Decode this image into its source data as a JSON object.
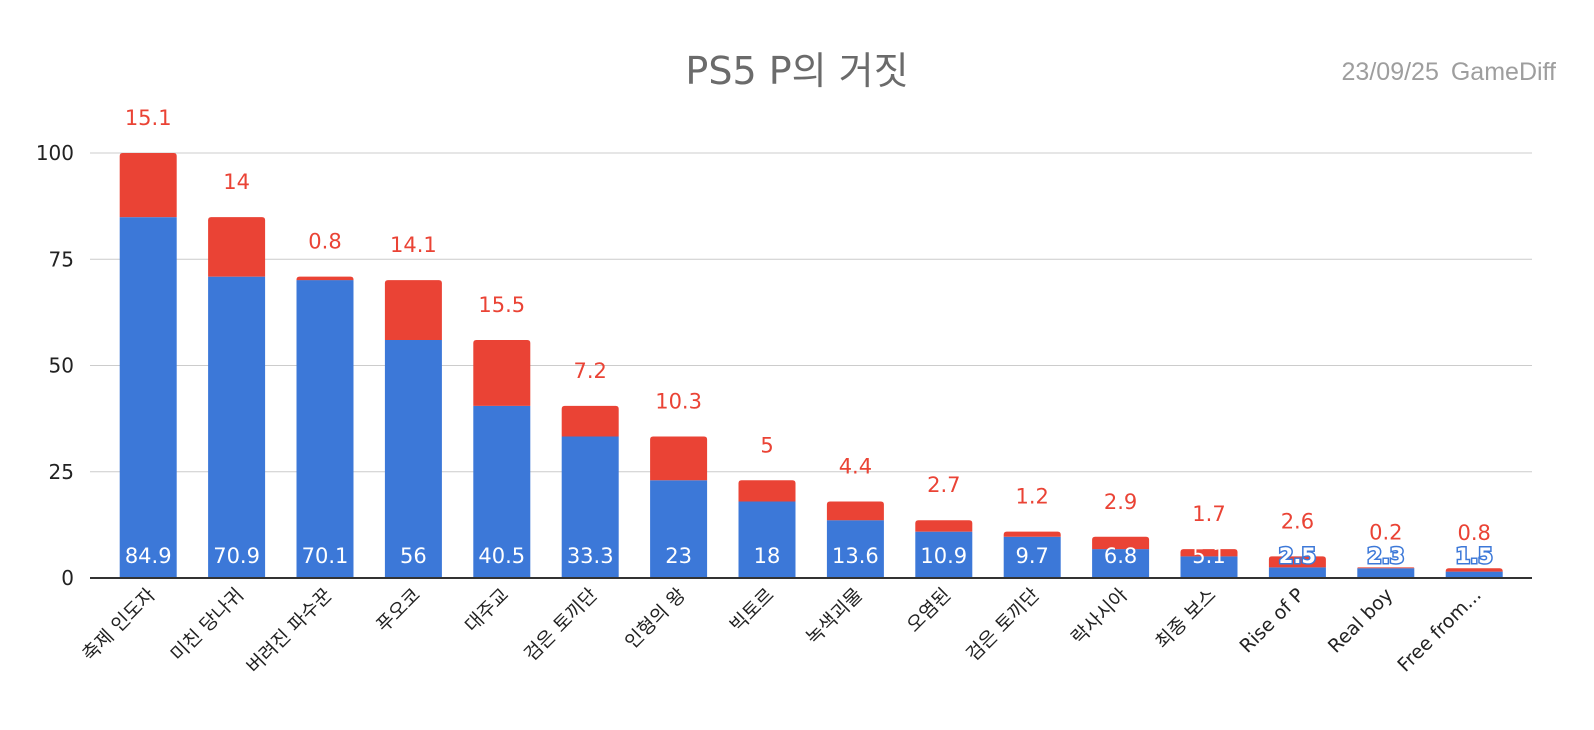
{
  "chart_data": {
    "type": "bar",
    "stacked": true,
    "title": "PS5 P의 거짓",
    "date": "23/09/25",
    "source": "GameDiff",
    "categories": [
      "축제 인도자",
      "미친 당나귀",
      "버려진 파수꾼",
      "푸오코",
      "대주교",
      "검은 토끼단",
      "인형의 왕",
      "빅토르",
      "녹색괴물",
      "오염된",
      "검은 토끼단",
      "락사시아",
      "최종 보스",
      "Rise of P",
      "Real boy",
      "Free from..."
    ],
    "series": [
      {
        "values": [
          84.9,
          70.9,
          70.1,
          56,
          40.5,
          33.3,
          23,
          18,
          13.6,
          10.9,
          9.7,
          6.8,
          5.1,
          2.5,
          2.3,
          1.5
        ]
      },
      {
        "values": [
          15.1,
          14,
          0.8,
          14.1,
          15.5,
          7.2,
          10.3,
          5,
          4.4,
          2.7,
          1.2,
          2.9,
          1.7,
          2.6,
          0.2,
          0.8
        ]
      }
    ],
    "ylim": [
      0,
      100
    ],
    "yticks": [
      "0",
      "25",
      "50",
      "75",
      "100"
    ],
    "grid": true,
    "colors": {
      "series0": "#3c78d8",
      "series1": "#ea4335",
      "grid": "#cccccc",
      "axis": "#333333"
    }
  }
}
